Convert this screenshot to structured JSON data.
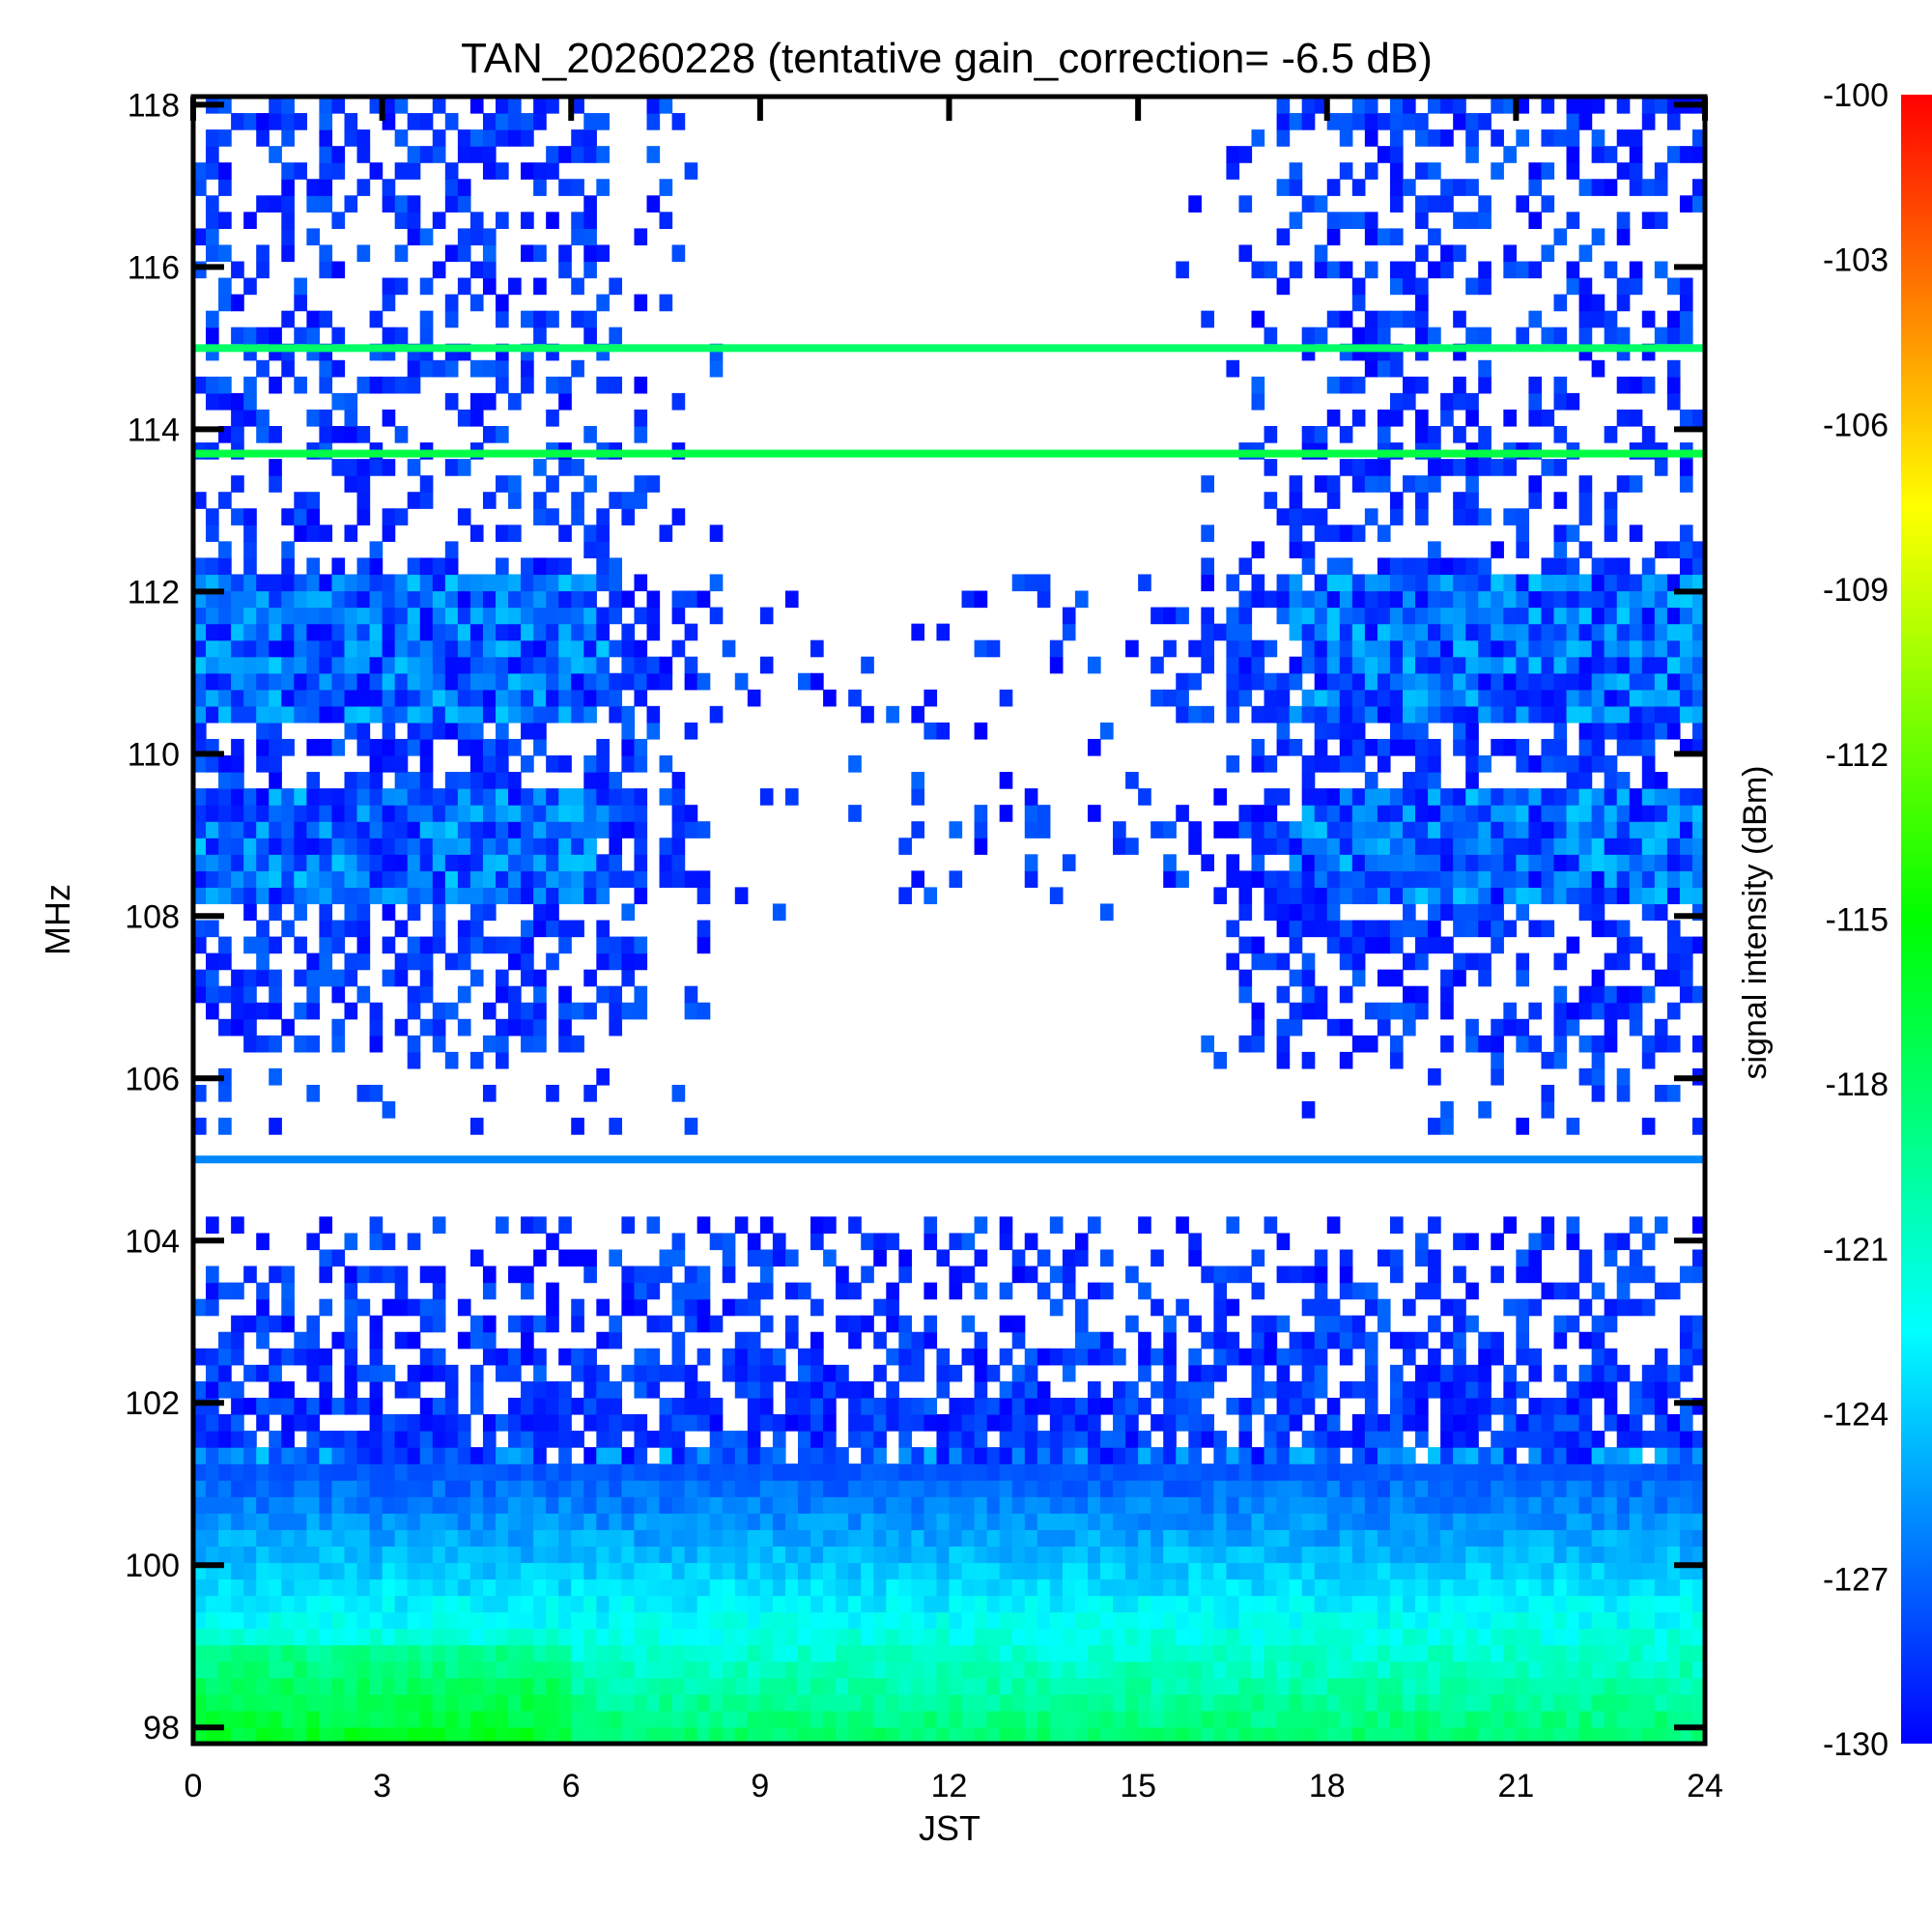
{
  "chart_data": {
    "type": "heatmap",
    "title": "TAN_20260228 (tentative gain_correction= -6.5 dB)",
    "xlabel": "JST",
    "ylabel": "MHz",
    "xlim": [
      0,
      24
    ],
    "ylim": [
      97.8,
      118.1
    ],
    "x_ticks": [
      0,
      3,
      6,
      9,
      12,
      15,
      18,
      21,
      24
    ],
    "y_ticks": [
      98,
      100,
      102,
      104,
      106,
      108,
      110,
      112,
      114,
      116,
      118
    ],
    "colorbar": {
      "label": "signal intensity (dBm)",
      "range": [
        -130,
        -100
      ],
      "ticks": [
        -100,
        -103,
        -106,
        -109,
        -112,
        -115,
        -118,
        -121,
        -124,
        -127,
        -130
      ],
      "colormap": [
        "#0000ff",
        "#00ffff",
        "#00ff00",
        "#ffff00",
        "#ff0000"
      ]
    },
    "features": [
      {
        "name": "constant carrier",
        "freq_mhz": 115.0,
        "level_dbm": -118
      },
      {
        "name": "constant carrier",
        "freq_mhz": 113.7,
        "level_dbm": -117
      },
      {
        "name": "constant carrier",
        "freq_mhz": 105.0,
        "level_dbm": -126
      },
      {
        "name": "aircraft band activity",
        "freq_range_mhz": [
          108.0,
          112.5
        ],
        "peak_hours": [
          [
            0,
            6
          ],
          [
            18,
            24
          ]
        ]
      },
      {
        "name": "broadband noise floor",
        "freq_range_mhz": [
          97.8,
          101.0
        ],
        "level_dbm": [
          -127,
          -118
        ]
      }
    ]
  }
}
